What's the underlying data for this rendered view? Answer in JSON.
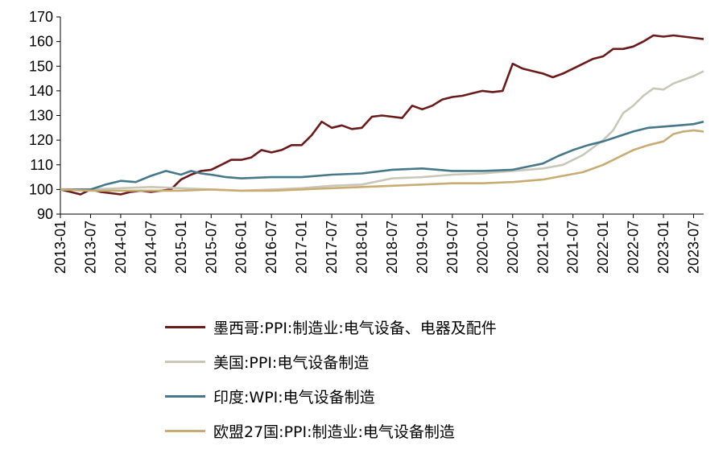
{
  "chart_data": {
    "type": "line",
    "title": "",
    "xlabel": "",
    "ylabel": "",
    "ylim": [
      90,
      170
    ],
    "yticks": [
      90,
      100,
      110,
      120,
      130,
      140,
      150,
      160,
      170
    ],
    "xticks": [
      "2013-01",
      "2013-07",
      "2014-01",
      "2014-07",
      "2015-01",
      "2015-07",
      "2016-01",
      "2016-07",
      "2017-01",
      "2017-07",
      "2018-01",
      "2018-07",
      "2019-01",
      "2019-07",
      "2020-01",
      "2020-07",
      "2021-01",
      "2021-07",
      "2022-01",
      "2022-07",
      "2023-01",
      "2023-07"
    ],
    "x_range": [
      "2013-01",
      "2023-09"
    ],
    "grid": false,
    "legend_position": "bottom",
    "series": [
      {
        "name": "墨西哥:PPI:制造业:电气设备、电器及配件",
        "color": "#6b1a1a",
        "points": [
          [
            "2013-01",
            100
          ],
          [
            "2013-03",
            99
          ],
          [
            "2013-05",
            98
          ],
          [
            "2013-07",
            100
          ],
          [
            "2013-09",
            99
          ],
          [
            "2013-11",
            98.5
          ],
          [
            "2014-01",
            98
          ],
          [
            "2014-03",
            99
          ],
          [
            "2014-05",
            99.5
          ],
          [
            "2014-07",
            99
          ],
          [
            "2014-09",
            99.5
          ],
          [
            "2014-11",
            100
          ],
          [
            "2015-01",
            104
          ],
          [
            "2015-03",
            106
          ],
          [
            "2015-05",
            107.5
          ],
          [
            "2015-07",
            108
          ],
          [
            "2015-09",
            110
          ],
          [
            "2015-11",
            112
          ],
          [
            "2016-01",
            112
          ],
          [
            "2016-03",
            113
          ],
          [
            "2016-05",
            116
          ],
          [
            "2016-07",
            115
          ],
          [
            "2016-09",
            116
          ],
          [
            "2016-11",
            118
          ],
          [
            "2017-01",
            118
          ],
          [
            "2017-03",
            122
          ],
          [
            "2017-05",
            127.5
          ],
          [
            "2017-07",
            125
          ],
          [
            "2017-09",
            126
          ],
          [
            "2017-11",
            124.5
          ],
          [
            "2018-01",
            125
          ],
          [
            "2018-03",
            129.5
          ],
          [
            "2018-05",
            130
          ],
          [
            "2018-07",
            129.5
          ],
          [
            "2018-09",
            129
          ],
          [
            "2018-11",
            134
          ],
          [
            "2019-01",
            132.5
          ],
          [
            "2019-03",
            134
          ],
          [
            "2019-05",
            136.5
          ],
          [
            "2019-07",
            137.5
          ],
          [
            "2019-09",
            138
          ],
          [
            "2019-11",
            139
          ],
          [
            "2020-01",
            140
          ],
          [
            "2020-03",
            139.5
          ],
          [
            "2020-05",
            140
          ],
          [
            "2020-07",
            151
          ],
          [
            "2020-09",
            149
          ],
          [
            "2020-11",
            148
          ],
          [
            "2021-01",
            147
          ],
          [
            "2021-03",
            145.5
          ],
          [
            "2021-05",
            147
          ],
          [
            "2021-07",
            149
          ],
          [
            "2021-09",
            151
          ],
          [
            "2021-11",
            153
          ],
          [
            "2022-01",
            154
          ],
          [
            "2022-03",
            157
          ],
          [
            "2022-05",
            157
          ],
          [
            "2022-07",
            158
          ],
          [
            "2022-09",
            160
          ],
          [
            "2022-11",
            162.5
          ],
          [
            "2023-01",
            162
          ],
          [
            "2023-03",
            162.5
          ],
          [
            "2023-05",
            162
          ],
          [
            "2023-07",
            161.5
          ],
          [
            "2023-09",
            161
          ]
        ]
      },
      {
        "name": "美国:PPI:电气设备制造",
        "color": "#c8c7b8",
        "points": [
          [
            "2013-01",
            100
          ],
          [
            "2013-07",
            100
          ],
          [
            "2014-01",
            100.5
          ],
          [
            "2014-07",
            101
          ],
          [
            "2015-01",
            100.5
          ],
          [
            "2015-07",
            100
          ],
          [
            "2016-01",
            99.5
          ],
          [
            "2016-07",
            100
          ],
          [
            "2017-01",
            100.5
          ],
          [
            "2017-07",
            101.5
          ],
          [
            "2018-01",
            102
          ],
          [
            "2018-07",
            104.5
          ],
          [
            "2019-01",
            105
          ],
          [
            "2019-07",
            106
          ],
          [
            "2020-01",
            106.5
          ],
          [
            "2020-07",
            107.5
          ],
          [
            "2021-01",
            108.5
          ],
          [
            "2021-05",
            110
          ],
          [
            "2021-09",
            114
          ],
          [
            "2022-01",
            120
          ],
          [
            "2022-03",
            124
          ],
          [
            "2022-05",
            131
          ],
          [
            "2022-07",
            134
          ],
          [
            "2022-09",
            138
          ],
          [
            "2022-11",
            141
          ],
          [
            "2023-01",
            140.5
          ],
          [
            "2023-03",
            143
          ],
          [
            "2023-05",
            144.5
          ],
          [
            "2023-07",
            146
          ],
          [
            "2023-09",
            148
          ]
        ]
      },
      {
        "name": "印度:WPI:电气设备制造",
        "color": "#46788a",
        "points": [
          [
            "2013-01",
            100
          ],
          [
            "2013-07",
            100
          ],
          [
            "2013-10",
            102
          ],
          [
            "2014-01",
            103.5
          ],
          [
            "2014-04",
            103
          ],
          [
            "2014-07",
            105.5
          ],
          [
            "2014-10",
            107.5
          ],
          [
            "2015-01",
            106
          ],
          [
            "2015-03",
            107.5
          ],
          [
            "2015-05",
            106.5
          ],
          [
            "2015-07",
            106
          ],
          [
            "2015-10",
            105
          ],
          [
            "2016-01",
            104.5
          ],
          [
            "2016-07",
            105
          ],
          [
            "2017-01",
            105
          ],
          [
            "2017-07",
            106
          ],
          [
            "2018-01",
            106.5
          ],
          [
            "2018-07",
            108
          ],
          [
            "2019-01",
            108.5
          ],
          [
            "2019-07",
            107.5
          ],
          [
            "2020-01",
            107.5
          ],
          [
            "2020-07",
            108
          ],
          [
            "2021-01",
            110.5
          ],
          [
            "2021-04",
            113.5
          ],
          [
            "2021-07",
            116
          ],
          [
            "2021-10",
            118
          ],
          [
            "2022-01",
            119.5
          ],
          [
            "2022-04",
            121.5
          ],
          [
            "2022-07",
            123.5
          ],
          [
            "2022-10",
            125
          ],
          [
            "2023-01",
            125.5
          ],
          [
            "2023-04",
            126
          ],
          [
            "2023-07",
            126.5
          ],
          [
            "2023-09",
            127.5
          ]
        ]
      },
      {
        "name": "欧盟27国:PPI:制造业:电气设备制造",
        "color": "#c9ac74",
        "points": [
          [
            "2013-01",
            100
          ],
          [
            "2013-07",
            99.5
          ],
          [
            "2014-01",
            99.5
          ],
          [
            "2014-07",
            99.5
          ],
          [
            "2015-01",
            99.5
          ],
          [
            "2015-07",
            100
          ],
          [
            "2016-01",
            99.5
          ],
          [
            "2016-07",
            99.5
          ],
          [
            "2017-01",
            100
          ],
          [
            "2017-07",
            100.5
          ],
          [
            "2018-01",
            101
          ],
          [
            "2018-07",
            101.5
          ],
          [
            "2019-01",
            102
          ],
          [
            "2019-07",
            102.5
          ],
          [
            "2020-01",
            102.5
          ],
          [
            "2020-07",
            103
          ],
          [
            "2021-01",
            104
          ],
          [
            "2021-05",
            105.5
          ],
          [
            "2021-09",
            107
          ],
          [
            "2022-01",
            110
          ],
          [
            "2022-04",
            113
          ],
          [
            "2022-07",
            116
          ],
          [
            "2022-10",
            118
          ],
          [
            "2023-01",
            119.5
          ],
          [
            "2023-03",
            122.5
          ],
          [
            "2023-05",
            123.5
          ],
          [
            "2023-07",
            124
          ],
          [
            "2023-09",
            123.5
          ]
        ]
      }
    ]
  }
}
